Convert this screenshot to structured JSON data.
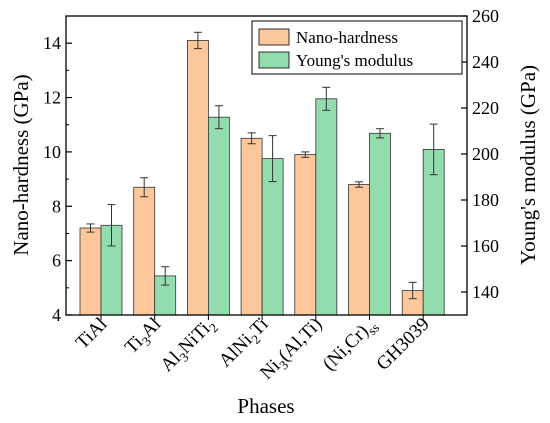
{
  "chart_data": {
    "type": "bar",
    "xlabel": "Phases",
    "ylabel_left": "Nano-hardness (GPa)",
    "ylabel_right": "Young's modulus (GPa)",
    "ylim_left": [
      4,
      15
    ],
    "ylim_right": [
      130,
      260
    ],
    "yticks_left": [
      4,
      6,
      8,
      10,
      12,
      14
    ],
    "yticks_right": [
      140,
      160,
      180,
      200,
      220,
      240,
      260
    ],
    "legend_position": "top-right",
    "categories": [
      {
        "base": "TiAl",
        "parts": [
          {
            "t": "TiAl",
            "s": "n"
          }
        ]
      },
      {
        "base": "Ti3Al",
        "parts": [
          {
            "t": "Ti",
            "s": "n"
          },
          {
            "t": "3",
            "s": "sub"
          },
          {
            "t": "Al",
            "s": "n"
          }
        ]
      },
      {
        "base": "Al3NiTi2",
        "parts": [
          {
            "t": "Al",
            "s": "n"
          },
          {
            "t": "3",
            "s": "sub"
          },
          {
            "t": "NiTi",
            "s": "n"
          },
          {
            "t": "2",
            "s": "sub"
          }
        ]
      },
      {
        "base": "AlNi2Ti",
        "parts": [
          {
            "t": "AlNi",
            "s": "n"
          },
          {
            "t": "2",
            "s": "sub"
          },
          {
            "t": "Ti",
            "s": "n"
          }
        ]
      },
      {
        "base": "Ni3(Al,Ti)",
        "parts": [
          {
            "t": "Ni",
            "s": "n"
          },
          {
            "t": "3",
            "s": "sub"
          },
          {
            "t": "(Al,Ti)",
            "s": "n"
          }
        ]
      },
      {
        "base": "(Ni,Cr)ss",
        "parts": [
          {
            "t": "(Ni,Cr)",
            "s": "n"
          },
          {
            "t": "ss",
            "s": "sub"
          }
        ]
      },
      {
        "base": "GH3039",
        "parts": [
          {
            "t": "GH3039",
            "s": "n"
          }
        ]
      }
    ],
    "series": [
      {
        "name": "Nano-hardness",
        "axis": "left",
        "color": "#fcc89b",
        "values": [
          7.2,
          8.7,
          14.1,
          10.5,
          9.9,
          8.8,
          4.9
        ],
        "errors": [
          0.15,
          0.35,
          0.3,
          0.2,
          0.1,
          0.1,
          0.3
        ]
      },
      {
        "name": "Young's modulus",
        "axis": "right",
        "color": "#93dcae",
        "values": [
          169,
          147,
          216,
          198,
          224,
          209,
          202
        ],
        "errors": [
          9,
          4,
          5,
          10,
          5,
          2,
          11
        ]
      }
    ]
  }
}
